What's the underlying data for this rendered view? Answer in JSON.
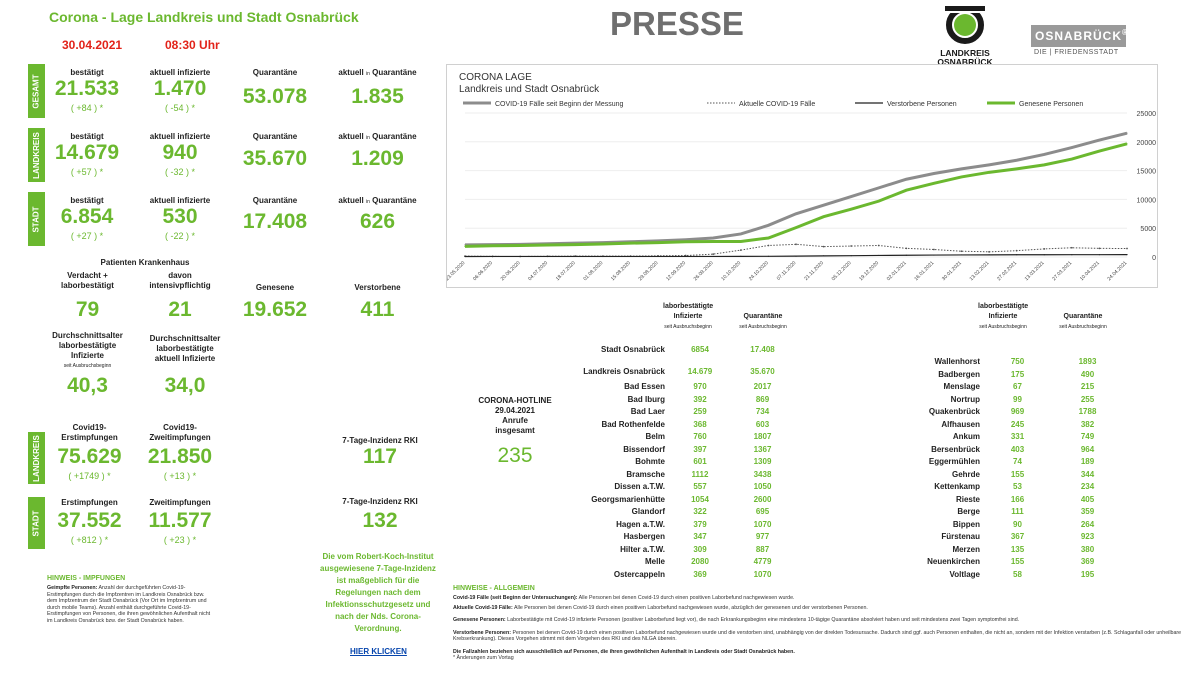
{
  "header": {
    "title": "Corona - Lage Landkreis und Stadt Osnabrück",
    "date": "30.04.2021",
    "time": "08:30 Uhr",
    "presse": "PRESSE",
    "logo1_line1": "LANDKREIS",
    "logo1_line2": "OSNABRÜCK",
    "logo2_name": "OSNABRÜCK",
    "logo2_reg": "®",
    "logo2_sub": "DIE | FRIEDENSSTADT"
  },
  "labels": {
    "bestaetigt": "bestätigt",
    "aktuell_infizierte": "aktuell infizierte",
    "quarantaene": "Quarantäne",
    "aktuell": "aktuell",
    "in": "in",
    "quarantaene2": "Quarantäne"
  },
  "sections": {
    "gesamt": {
      "tab": "GESAMT",
      "bestaetigt": "21.533",
      "bestaetigt_delta": "( +84 ) *",
      "infizierte": "1.470",
      "infizierte_delta": "( -54 ) *",
      "quarantaene": "53.078",
      "aktuell_quarantaene": "1.835"
    },
    "landkreis": {
      "tab": "LANDKREIS",
      "bestaetigt": "14.679",
      "bestaetigt_delta": "( +57 ) *",
      "infizierte": "940",
      "infizierte_delta": "( -32 ) *",
      "quarantaene": "35.670",
      "aktuell_quarantaene": "1.209"
    },
    "stadt": {
      "tab": "STADT",
      "bestaetigt": "6.854",
      "bestaetigt_delta": "( +27 ) *",
      "infizierte": "530",
      "infizierte_delta": "( -22 ) *",
      "quarantaene": "17.408",
      "aktuell_quarantaene": "626"
    }
  },
  "hospital": {
    "title": "Patienten Krankenhaus",
    "verdacht_l1": "Verdacht +",
    "verdacht_l2": "laborbestätigt",
    "verdacht": "79",
    "intensiv_l1": "davon",
    "intensiv_l2": "intensivpflichtig",
    "intensiv": "21",
    "genesene_label": "Genesene",
    "genesene": "19.652",
    "verstorbene_label": "Verstorbene",
    "verstorbene": "411"
  },
  "age": {
    "a_l1": "Durchschnittsalter",
    "a_l2": "laborbestätigte",
    "a_l3": "Infizierte",
    "a_l4": "seit Ausbruchsbeginn",
    "a_val": "40,3",
    "b_l1": "Durchschnittsalter",
    "b_l2": "laborbestätigte",
    "b_l3": "aktuell Infizierte",
    "b_val": "34,0"
  },
  "vaccination": {
    "landkreis": {
      "tab": "LANDKREIS",
      "erst_l1": "Covid19-",
      "erst_l2": "Erstimpfungen",
      "erst": "75.629",
      "erst_delta": "( +1749 ) *",
      "zweit_l1": "Covid19-",
      "zweit_l2": "Zweitimpfungen",
      "zweit": "21.850",
      "zweit_delta": "( +13 ) *",
      "inz_label": "7-Tage-Inzidenz  RKI",
      "inz": "117"
    },
    "stadt": {
      "tab": "STADT",
      "erst_l1": "Erstimpfungen",
      "erst": "37.552",
      "erst_delta": "( +812 ) *",
      "zweit_l1": "Zweitimpfungen",
      "zweit": "11.577",
      "zweit_delta": "( +23 ) *",
      "inz_label": "7-Tage-Inzidenz  RKI",
      "inz": "132"
    }
  },
  "rki_note": "Die vom Robert-Koch-Institut ausgewiesene 7-Tage-Inzidenz ist maßgeblich für die Regelungen nach dem Infektionsschutzgesetz und nach der Nds. Corona-Verordnung.",
  "hier_klicken": "HIER KLICKEN",
  "hinweis_impf": {
    "title": "HINWEIS - IMPFUNGEN",
    "p1_bold": "Geimpfte Personen:",
    "p1": " Anzahl der durchgeführten Covid-19-Erstimpfungen durch die Impfzentren im Landkreis Osnabrück bzw. dem Impfzentrum der Stadt Osnabrück (Vor Ort im Impfzentrum und durch mobile Teams). Anzahl enthält durchgeführte Covid-19-Erstimpfungen von Personen, die ihren gewöhnlichen Aufenthalt nicht im Landkreis Osnabrück bzw. der Stadt Osnabrück haben."
  },
  "hotline": {
    "l1": "CORONA-HOTLINE",
    "l2": "29.04.2021",
    "l3": "Anrufe",
    "l4": "insgesamt",
    "val": "235"
  },
  "table_heads": {
    "h1_l1": "laborbestätigte",
    "h1_l2": "Infizierte",
    "h1_l3": "seit Ausbruchsbeginn",
    "h2_l1": "Quarantäne",
    "h2_l2": "seit Ausbruchsbeginn"
  },
  "table_top": [
    {
      "name": "Stadt Osnabrück",
      "a": "6854",
      "b": "17.408"
    },
    {
      "name": "Landkreis Osnabrück",
      "a": "14.679",
      "b": "35.670"
    }
  ],
  "table_mid": [
    {
      "name": "Bad Essen",
      "a": "970",
      "b": "2017"
    },
    {
      "name": "Bad Iburg",
      "a": "392",
      "b": "869"
    },
    {
      "name": "Bad Laer",
      "a": "259",
      "b": "734"
    },
    {
      "name": "Bad Rothenfelde",
      "a": "368",
      "b": "603"
    },
    {
      "name": "Belm",
      "a": "760",
      "b": "1807"
    },
    {
      "name": "Bissendorf",
      "a": "397",
      "b": "1367"
    },
    {
      "name": "Bohmte",
      "a": "601",
      "b": "1309"
    },
    {
      "name": "Bramsche",
      "a": "1112",
      "b": "3438"
    },
    {
      "name": "Dissen a.T.W.",
      "a": "557",
      "b": "1050"
    },
    {
      "name": "Georgsmarienhütte",
      "a": "1054",
      "b": "2600"
    },
    {
      "name": "Glandorf",
      "a": "322",
      "b": "695"
    },
    {
      "name": "Hagen a.T.W.",
      "a": "379",
      "b": "1070"
    },
    {
      "name": "Hasbergen",
      "a": "347",
      "b": "977"
    },
    {
      "name": "Hilter a.T.W.",
      "a": "309",
      "b": "887"
    },
    {
      "name": "Melle",
      "a": "2080",
      "b": "4779"
    },
    {
      "name": "Ostercappeln",
      "a": "369",
      "b": "1070"
    }
  ],
  "table_right": [
    {
      "name": "Wallenhorst",
      "a": "750",
      "b": "1893"
    },
    {
      "name": "Badbergen",
      "a": "175",
      "b": "490"
    },
    {
      "name": "Menslage",
      "a": "67",
      "b": "215"
    },
    {
      "name": "Nortrup",
      "a": "99",
      "b": "255"
    },
    {
      "name": "Quakenbrück",
      "a": "969",
      "b": "1788"
    },
    {
      "name": "Alfhausen",
      "a": "245",
      "b": "382"
    },
    {
      "name": "Ankum",
      "a": "331",
      "b": "749"
    },
    {
      "name": "Bersenbrück",
      "a": "403",
      "b": "964"
    },
    {
      "name": "Eggermühlen",
      "a": "74",
      "b": "189"
    },
    {
      "name": "Gehrde",
      "a": "155",
      "b": "344"
    },
    {
      "name": "Kettenkamp",
      "a": "53",
      "b": "234"
    },
    {
      "name": "Rieste",
      "a": "166",
      "b": "405"
    },
    {
      "name": "Berge",
      "a": "111",
      "b": "359"
    },
    {
      "name": "Bippen",
      "a": "90",
      "b": "264"
    },
    {
      "name": "Fürstenau",
      "a": "367",
      "b": "923"
    },
    {
      "name": "Merzen",
      "a": "135",
      "b": "380"
    },
    {
      "name": "Neuenkirchen",
      "a": "155",
      "b": "369"
    },
    {
      "name": "Voltlage",
      "a": "58",
      "b": "195"
    }
  ],
  "hinweise_allg": {
    "title": "HINWEISE - ALLGEMEIN",
    "p1_bold": "Covid-19 Fälle (seit Beginn der Untersuchungen):",
    "p1": " Alle Personen bei denen Covid-19 durch einen positiven Laborbefund nachgewiesen wurde.",
    "p2_bold": "Aktuelle Covid-19 Fälle:",
    "p2": " Alle Personen bei denen Covid-19 durch einen positiven Laborbefund nachgewiesen wurde, abzüglich der genesenen und der verstorbenen Personen.",
    "p3_bold": "Genesene Personen:",
    "p3": " Laborbestätigte mit Covid-19 infizierte Personen (positiver Laborbefund liegt vor), die nach Erkrankungsbeginn eine mindestens 10-tägige Quarantäne absolviert haben und seit mindestens zwei Tagen symptomfrei sind.",
    "p4_bold": "Verstorbene Personen:",
    "p4": " Personen bei denen Covid-19 durch einen positiven Laborbefund nachgewiesen wurde und die verstorben sind, unabhängig von der direkten Todesursache. Dadurch sind ggf. auch Personen enthalten, die nicht an, sondern mit der Infektion verstarben (z.B. Schlaganfall oder unheilbare Krebserkrankung). Dieses Vorgehen stimmt mit dem Vorgehen des RKI und des NLGA überein.",
    "p5": "Die Fallzahlen beziehen sich ausschließlich auf Personen, die ihren gewöhnlichen Aufenthalt in Landkreis oder Stadt Osnabrück haben.",
    "p6": "* Änderungen zum Vortag"
  },
  "chart_data": {
    "type": "line",
    "title": "CORONA LAGE",
    "subtitle": "Landkreis und Stadt Osnabrück",
    "legend_position": "top",
    "ylim": [
      0,
      25000
    ],
    "yticks": [
      0,
      5000,
      10000,
      15000,
      20000,
      25000
    ],
    "x": [
      "23.05.2020",
      "06.06.2020",
      "20.06.2020",
      "04.07.2020",
      "18.07.2020",
      "01.08.2020",
      "15.08.2020",
      "29.08.2020",
      "12.09.2020",
      "26.09.2020",
      "10.10.2020",
      "24.10.2020",
      "07.11.2020",
      "21.11.2020",
      "05.12.2020",
      "19.12.2020",
      "02.01.2021",
      "16.01.2021",
      "30.01.2021",
      "13.02.2021",
      "27.02.2021",
      "13.03.2021",
      "27.03.2021",
      "10.04.2021",
      "24.04.2021"
    ],
    "series": [
      {
        "name": "COVID-19 Fälle seit Beginn der Messung",
        "color": "#8c8c8c",
        "values": [
          2100,
          2150,
          2200,
          2300,
          2400,
          2500,
          2650,
          2800,
          3000,
          3300,
          4000,
          5500,
          7500,
          9000,
          10500,
          12000,
          13500,
          14500,
          15300,
          16000,
          16800,
          17800,
          19000,
          20300,
          21500
        ]
      },
      {
        "name": "Aktuelle COVID-19 Fälle",
        "color": "#555555",
        "values": [
          150,
          100,
          90,
          120,
          150,
          140,
          150,
          200,
          250,
          500,
          1200,
          2000,
          2200,
          1800,
          1900,
          2000,
          1500,
          1300,
          1000,
          900,
          1100,
          1400,
          1600,
          1500,
          1470
        ]
      },
      {
        "name": "Verstorbene Personen",
        "color": "#222222",
        "values": [
          90,
          95,
          95,
          96,
          96,
          97,
          98,
          98,
          99,
          100,
          105,
          120,
          150,
          190,
          230,
          270,
          310,
          340,
          360,
          375,
          385,
          395,
          400,
          405,
          411
        ]
      },
      {
        "name": "Genesene Personen",
        "color": "#6bb82f",
        "values": [
          1850,
          1950,
          2000,
          2080,
          2150,
          2260,
          2400,
          2500,
          2650,
          2700,
          2700,
          3300,
          5100,
          7000,
          8300,
          9700,
          11600,
          12800,
          13900,
          14700,
          15300,
          16000,
          17000,
          18400,
          19652
        ]
      }
    ]
  }
}
